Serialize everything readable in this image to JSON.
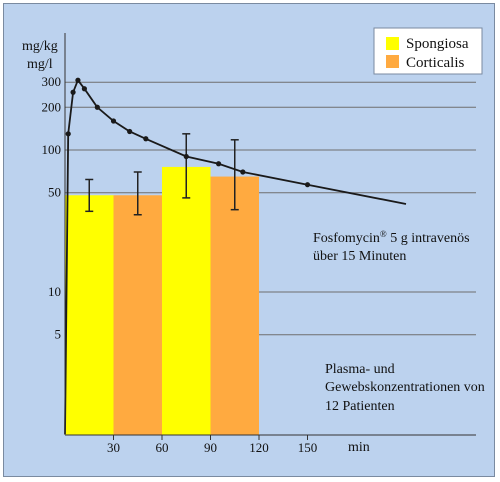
{
  "chart_data": {
    "type": "bar",
    "ylabel_top": "mg/kg",
    "ylabel_bottom": "mg/l",
    "xlabel": "min",
    "y_scale": "log",
    "ylim": [
      1,
      400
    ],
    "xlim": [
      0,
      175
    ],
    "y_ticks": [
      5,
      10,
      50,
      100,
      200,
      300
    ],
    "x_ticks": [
      30,
      60,
      90,
      120,
      150
    ],
    "gridlines_y": [
      5,
      10,
      50,
      100,
      200,
      300
    ],
    "legend_position": "top-right",
    "colors": {
      "spongiosa": "#ffff00",
      "corticalis": "#ffaa40",
      "background": "#bcd2ee",
      "line": "#1a1a1a"
    },
    "series": [
      {
        "name": "Spongiosa",
        "x": [
          30,
          90
        ],
        "values": [
          48,
          76
        ],
        "error": [
          [
            37,
            62
          ],
          [
            46,
            130
          ]
        ]
      },
      {
        "name": "Corticalis",
        "x": [
          60,
          120
        ],
        "values": [
          48,
          65
        ],
        "error": [
          [
            35,
            70
          ],
          [
            38,
            118
          ]
        ]
      }
    ],
    "plasma_curve": {
      "x": [
        0,
        2,
        5,
        8,
        12,
        20,
        30,
        40,
        50,
        75,
        95,
        110,
        150
      ],
      "values": [
        1,
        130,
        255,
        310,
        270,
        200,
        160,
        135,
        120,
        90,
        80,
        70,
        57
      ],
      "markers_from_index": 1
    },
    "annotations": {
      "dose_line1": "Fosfomycin",
      "dose_sup": "®",
      "dose_line1_rest": " 5 g intravenös",
      "dose_line2": "über 15 Minuten",
      "study_line1": "Plasma- und",
      "study_line2": "Gewebskonzentrationen von",
      "study_line3": "12 Patienten"
    }
  }
}
